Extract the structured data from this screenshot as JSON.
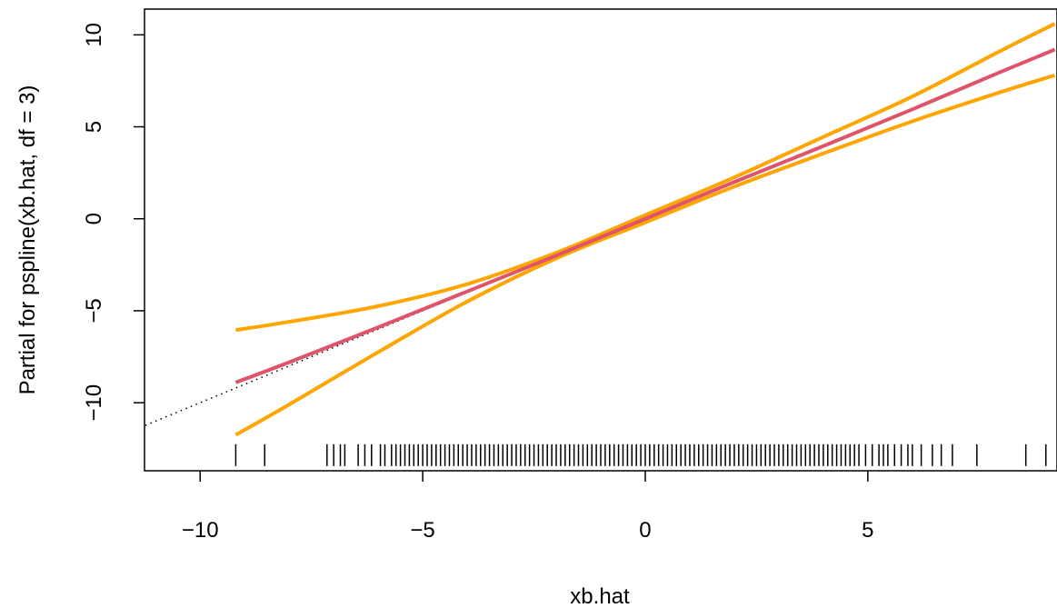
{
  "chart_data": {
    "type": "line",
    "title": "",
    "xlabel": "xb.hat",
    "ylabel": "Partial for pspline(xb.hat, df = 3)",
    "xlim": [
      -11.25,
      9.25
    ],
    "ylim": [
      -13.7,
      11.4
    ],
    "x_ticks": [
      "−10",
      "−5",
      "0",
      "5"
    ],
    "x_tick_values": [
      -10,
      -5,
      0,
      5
    ],
    "y_ticks": [
      "−10",
      "−5",
      "0",
      "5",
      "10"
    ],
    "y_tick_values": [
      -10,
      -5,
      0,
      5,
      10
    ],
    "grid": false,
    "x": [
      -9.2,
      -8,
      -6,
      -4,
      -2,
      0,
      2,
      4,
      6,
      8,
      9.2
    ],
    "series": [
      {
        "role": "fit",
        "color": "#DF536B",
        "values": [
          -8.9,
          -7.8,
          -5.9,
          -3.95,
          -2.0,
          0.0,
          2.0,
          3.95,
          5.95,
          8.0,
          9.2
        ]
      },
      {
        "role": "upper-band",
        "color": "#FFA500",
        "values": [
          -6.05,
          -5.6,
          -4.75,
          -3.55,
          -1.85,
          0.2,
          2.25,
          4.45,
          6.65,
          9.15,
          10.6
        ]
      },
      {
        "role": "lower-band",
        "color": "#FFA500",
        "values": [
          -11.75,
          -10.1,
          -7.25,
          -4.5,
          -2.15,
          -0.2,
          1.75,
          3.55,
          5.3,
          6.9,
          7.8
        ]
      }
    ],
    "reference_line": {
      "slope": 1,
      "intercept": 0,
      "style": "dotted",
      "color": "#000000"
    },
    "rug": {
      "y": -12.85,
      "x": [
        -9.2,
        -8.55,
        -7.15,
        -7.0,
        -6.85,
        -6.75,
        -6.45,
        -6.3,
        -6.15,
        -5.95,
        -5.85,
        -5.7,
        -5.6,
        -5.5,
        -5.4,
        -5.3,
        -5.2,
        -5.1,
        -5.0,
        -4.9,
        -4.8,
        -4.7,
        -4.6,
        -4.5,
        -4.4,
        -4.3,
        -4.2,
        -4.1,
        -4.0,
        -3.9,
        -3.8,
        -3.7,
        -3.6,
        -3.5,
        -3.4,
        -3.3,
        -3.2,
        -3.1,
        -3.0,
        -2.9,
        -2.8,
        -2.7,
        -2.6,
        -2.5,
        -2.4,
        -2.3,
        -2.2,
        -2.1,
        -2.0,
        -1.9,
        -1.8,
        -1.7,
        -1.6,
        -1.5,
        -1.4,
        -1.3,
        -1.2,
        -1.1,
        -1.0,
        -0.9,
        -0.8,
        -0.7,
        -0.6,
        -0.5,
        -0.4,
        -0.3,
        -0.2,
        -0.1,
        0.0,
        0.1,
        0.2,
        0.3,
        0.4,
        0.5,
        0.6,
        0.7,
        0.8,
        0.9,
        1.0,
        1.1,
        1.2,
        1.3,
        1.4,
        1.5,
        1.6,
        1.7,
        1.8,
        1.9,
        2.0,
        2.1,
        2.2,
        2.3,
        2.4,
        2.5,
        2.6,
        2.7,
        2.8,
        2.9,
        3.0,
        3.1,
        3.2,
        3.3,
        3.4,
        3.5,
        3.6,
        3.7,
        3.8,
        3.9,
        4.0,
        4.1,
        4.2,
        4.3,
        4.4,
        4.5,
        4.6,
        4.7,
        4.8,
        4.95,
        5.1,
        5.25,
        5.35,
        5.45,
        5.6,
        5.75,
        5.9,
        6.0,
        6.2,
        6.45,
        6.65,
        6.9,
        7.45,
        8.55,
        9.0
      ]
    }
  }
}
